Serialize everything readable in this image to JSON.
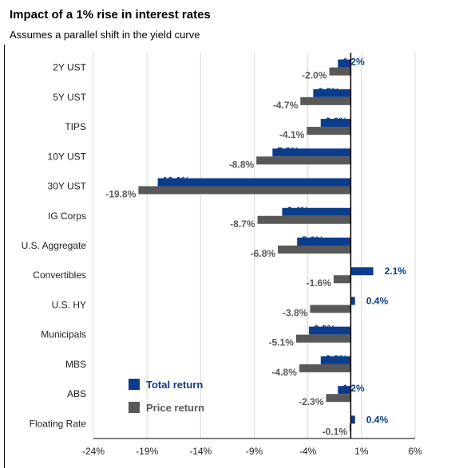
{
  "title": "Impact of a 1% rise in interest rates",
  "subtitle": "Assumes a parallel shift in the yield curve",
  "chart_data": {
    "type": "bar",
    "orientation": "horizontal",
    "categories": [
      "2Y UST",
      "5Y UST",
      "TIPS",
      "10Y UST",
      "30Y UST",
      "IG Corps",
      "U.S. Aggregate",
      "Convertibles",
      "U.S. HY",
      "Municipals",
      "MBS",
      "ABS",
      "Floating Rate"
    ],
    "series": [
      {
        "name": "Total return",
        "color": "#0b3d8c",
        "values": [
          -1.2,
          -3.5,
          -2.8,
          -7.3,
          -18.0,
          -6.4,
          -5.0,
          2.1,
          0.4,
          -3.9,
          -2.8,
          -1.2,
          0.4
        ],
        "labels": [
          "-1.2%",
          "-3.5%",
          "-2.8%",
          "-7.3%",
          "-18.0%",
          "-6.4%",
          "-5.0%",
          "2.1%",
          "0.4%",
          "-3.9%",
          "-2.8%",
          "-1.2%",
          "0.4%"
        ]
      },
      {
        "name": "Price return",
        "color": "#595959",
        "values": [
          -2.0,
          -4.7,
          -4.1,
          -8.8,
          -19.8,
          -8.7,
          -6.8,
          -1.6,
          -3.8,
          -5.1,
          -4.8,
          -2.3,
          -0.1
        ],
        "labels": [
          "-2.0%",
          "-4.7%",
          "-4.1%",
          "-8.8%",
          "-19.8%",
          "-8.7%",
          "-6.8%",
          "-1.6%",
          "-3.8%",
          "-5.1%",
          "-4.8%",
          "-2.3%",
          "-0.1%"
        ]
      }
    ],
    "xlim": [
      -24,
      6
    ],
    "xticks": [
      -24,
      -19,
      -14,
      -9,
      -4,
      1,
      6
    ],
    "xtick_labels": [
      "-24%",
      "-19%",
      "-14%",
      "-9%",
      "-4%",
      "1%",
      "6%"
    ],
    "grid": "vertical",
    "legend": "bottom-left inside"
  }
}
